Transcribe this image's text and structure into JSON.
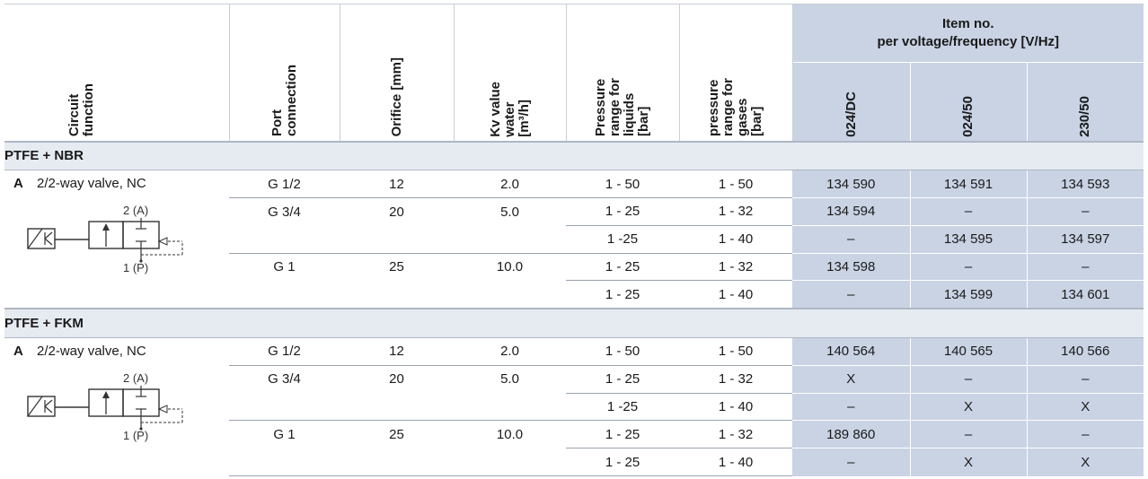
{
  "headers": {
    "circuit": "Circuit\nfunction",
    "port": "Port\nconnection",
    "orifice": "Orifice [mm]",
    "kv": "Kv value\nwater\n[m³/h]",
    "liq": "Pressure\nrange for\nliquids\n[bar]",
    "gas": "pressure\nrange for\ngases\n[bar]",
    "item_line1": "Item no.",
    "item_line2": "per voltage/frequency [V/Hz]",
    "v1": "024/DC",
    "v2": "024/50",
    "v3": "230/50"
  },
  "sections": [
    {
      "title": "PTFE + NBR",
      "letter": "A",
      "function": "2/2-way valve, NC",
      "port_a": "2 (A)",
      "port_p": "1 (P)",
      "rows": [
        {
          "port": "G 1/2",
          "orifice": "12",
          "kv": "2.0",
          "liq": "1 - 50",
          "gas": "1 - 50",
          "v1": "134 590",
          "v2": "134 591",
          "v3": "134 593"
        },
        {
          "port": "G 3/4",
          "orifice": "20",
          "kv": "5.0",
          "liq": "1 - 25",
          "gas": "1 - 32",
          "v1": "134 594",
          "v2": "–",
          "v3": "–"
        },
        {
          "port": "",
          "orifice": "",
          "kv": "",
          "liq": "1 -25",
          "gas": "1 - 40",
          "v1": "–",
          "v2": "134 595",
          "v3": "134 597"
        },
        {
          "port": "G 1",
          "orifice": "25",
          "kv": "10.0",
          "liq": "1 - 25",
          "gas": "1 - 32",
          "v1": "134 598",
          "v2": "–",
          "v3": "–"
        },
        {
          "port": "",
          "orifice": "",
          "kv": "",
          "liq": "1 - 25",
          "gas": "1 - 40",
          "v1": "–",
          "v2": "134 599",
          "v3": "134 601"
        }
      ]
    },
    {
      "title": "PTFE + FKM",
      "letter": "A",
      "function": "2/2-way valve, NC",
      "port_a": "2 (A)",
      "port_p": "1 (P)",
      "rows": [
        {
          "port": "G 1/2",
          "orifice": "12",
          "kv": "2.0",
          "liq": "1 - 50",
          "gas": "1 - 50",
          "v1": "140 564",
          "v2": "140 565",
          "v3": "140 566"
        },
        {
          "port": "G 3/4",
          "orifice": "20",
          "kv": "5.0",
          "liq": "1 - 25",
          "gas": "1 - 32",
          "v1": "X",
          "v2": "–",
          "v3": "–"
        },
        {
          "port": "",
          "orifice": "",
          "kv": "",
          "liq": "1 -25",
          "gas": "1 - 40",
          "v1": "–",
          "v2": "X",
          "v3": "X"
        },
        {
          "port": "G 1",
          "orifice": "25",
          "kv": "10.0",
          "liq": "1 - 25",
          "gas": "1 - 32",
          "v1": "189 860",
          "v2": "–",
          "v3": "–"
        },
        {
          "port": "",
          "orifice": "",
          "kv": "",
          "liq": "1 - 25",
          "gas": "1 - 40",
          "v1": "–",
          "v2": "X",
          "v3": "X"
        }
      ]
    }
  ]
}
